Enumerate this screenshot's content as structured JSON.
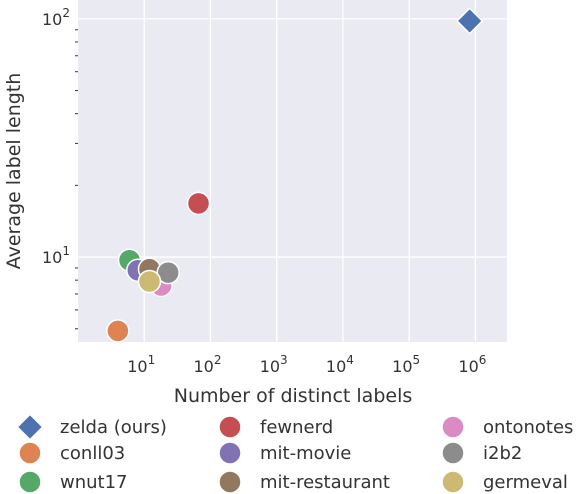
{
  "chart_data": {
    "type": "scatter",
    "xlabel": "Number of distinct labels",
    "ylabel": "Average label length",
    "x_scale": "log",
    "y_scale": "log",
    "xlim": [
      1,
      3000000
    ],
    "ylim": [
      4.4,
      120
    ],
    "x_ticks": [
      {
        "value": 10,
        "label": "10",
        "exp": "1"
      },
      {
        "value": 100,
        "label": "10",
        "exp": "2"
      },
      {
        "value": 1000,
        "label": "10",
        "exp": "3"
      },
      {
        "value": 10000,
        "label": "10",
        "exp": "4"
      },
      {
        "value": 100000,
        "label": "10",
        "exp": "5"
      },
      {
        "value": 1000000,
        "label": "10",
        "exp": "6"
      }
    ],
    "y_ticks": [
      {
        "value": 10,
        "label": "10",
        "exp": "1"
      },
      {
        "value": 100,
        "label": "10",
        "exp": "2"
      }
    ],
    "grid": true,
    "legend_position": "bottom",
    "points": [
      {
        "name": "zelda (ours)",
        "x": 820000,
        "y": 98,
        "color": "#4c72b0",
        "marker": "diamond"
      },
      {
        "name": "conll03",
        "x": 4,
        "y": 4.9,
        "color": "#dd8452",
        "marker": "circle"
      },
      {
        "name": "wnut17",
        "x": 6,
        "y": 9.7,
        "color": "#55a868",
        "marker": "circle"
      },
      {
        "name": "fewnerd",
        "x": 66,
        "y": 16.8,
        "color": "#c44e52",
        "marker": "circle"
      },
      {
        "name": "mit-movie",
        "x": 8,
        "y": 8.8,
        "color": "#8172b3",
        "marker": "circle"
      },
      {
        "name": "mit-restaurant",
        "x": 12,
        "y": 8.9,
        "color": "#937860",
        "marker": "circle"
      },
      {
        "name": "ontonotes",
        "x": 18,
        "y": 7.6,
        "color": "#da8bc3",
        "marker": "circle"
      },
      {
        "name": "i2b2",
        "x": 23,
        "y": 8.6,
        "color": "#8c8c8c",
        "marker": "circle"
      },
      {
        "name": "germeval",
        "x": 12,
        "y": 7.9,
        "color": "#ccb974",
        "marker": "circle"
      }
    ]
  }
}
